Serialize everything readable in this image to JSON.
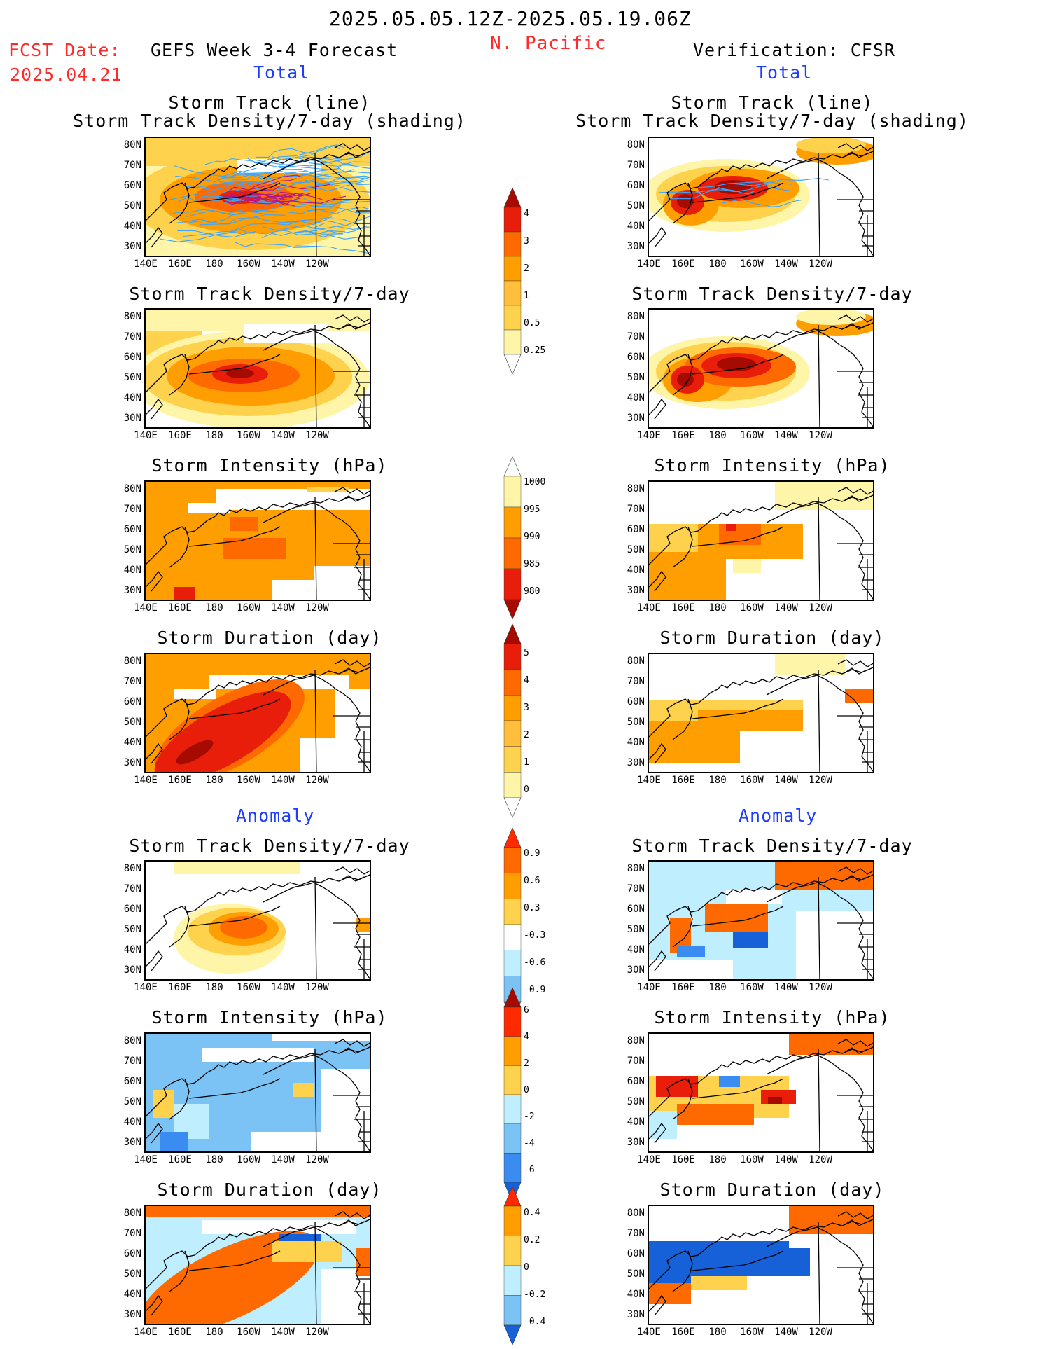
{
  "header": {
    "period": "2025.05.05.12Z-2025.05.19.06Z",
    "region": "N. Pacific",
    "fcst_label": "FCST Date:",
    "fcst_date": "2025.04.21",
    "left_title": "GEFS Week 3-4 Forecast",
    "right_title": "Verification: CFSR",
    "total_label": "Total",
    "anomaly_label": "Anomaly"
  },
  "panel_titles": {
    "track_line": "Storm Track (line)",
    "track_density_shading": "Storm Track Density/7-day (shading)",
    "track_density": "Storm Track Density/7-day",
    "intensity": "Storm Intensity (hPa)",
    "duration": "Storm Duration (day)"
  },
  "axes": {
    "lat_ticks": [
      "80N",
      "70N",
      "60N",
      "50N",
      "40N",
      "30N"
    ],
    "lon_ticks": [
      "140E",
      "160E",
      "180",
      "160W",
      "140W",
      "120W"
    ]
  },
  "colorbars": {
    "density_total": [
      "4",
      "3",
      "2",
      "1",
      "0.5",
      "0.25"
    ],
    "intensity_total": [
      "1000",
      "995",
      "990",
      "985",
      "980"
    ],
    "duration_total": [
      "5",
      "4",
      "3",
      "2",
      "1",
      "0"
    ],
    "density_anom": [
      "0.9",
      "0.6",
      "0.3",
      "-0.3",
      "-0.6",
      "-0.9"
    ],
    "intensity_anom": [
      "6",
      "4",
      "2",
      "0",
      "-2",
      "-4",
      "-6"
    ],
    "duration_anom": [
      "0.4",
      "0.2",
      "0",
      "-0.2",
      "-0.4"
    ]
  },
  "colors": {
    "title_red": "#ff2a2a",
    "label_blue": "#1f3dff",
    "yellow_light": "#fff5a8",
    "yellow": "#ffd24d",
    "orange": "#ff9e00",
    "orange_dark": "#ff6a00",
    "red": "#e81e0a",
    "red_dark": "#a50b00",
    "blue_light": "#bfefff",
    "blue": "#7bc2f5",
    "blue_mid": "#3b8cf0",
    "blue_dark": "#1660d8",
    "track_blue": "#39a6ff"
  }
}
